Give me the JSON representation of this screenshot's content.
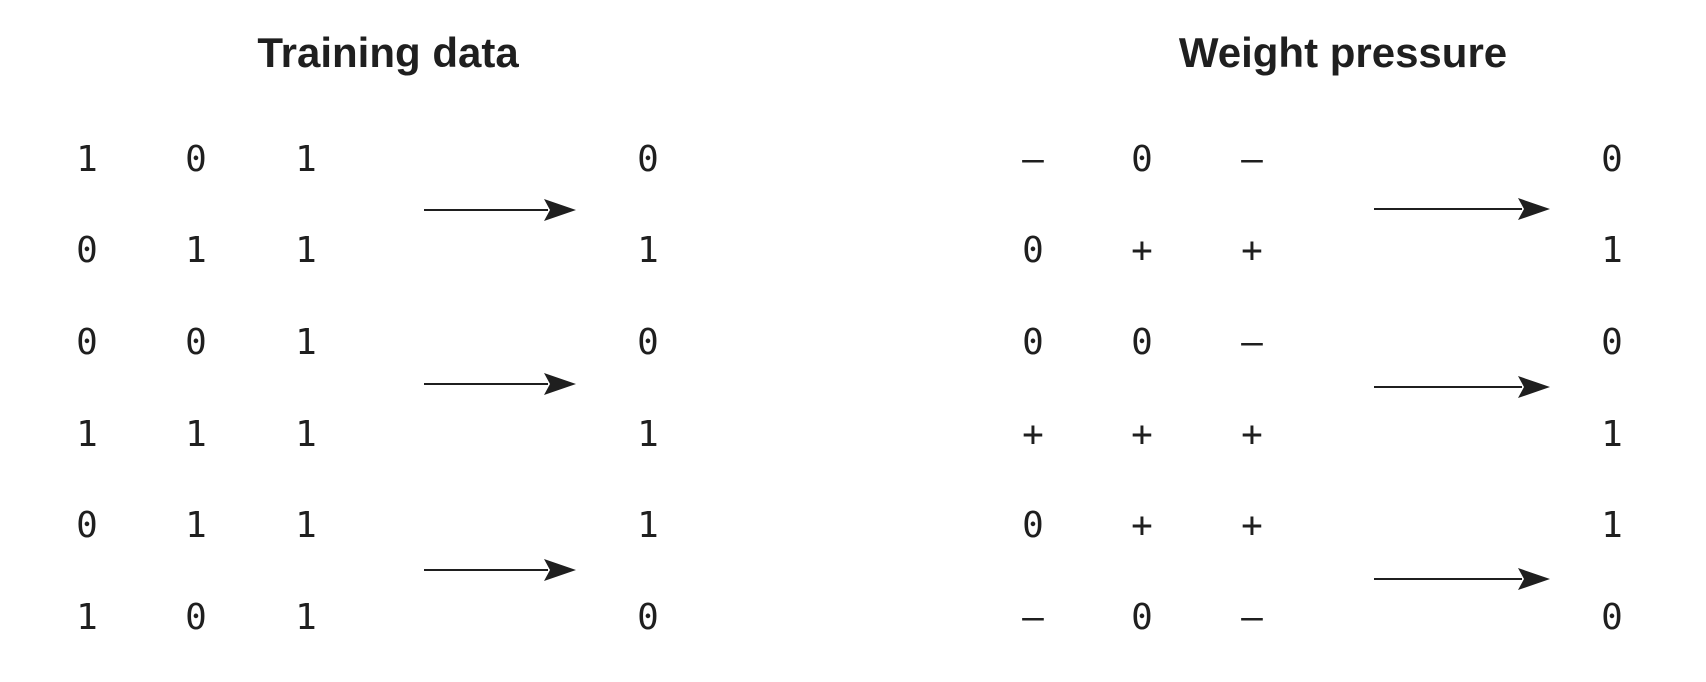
{
  "panels": [
    {
      "title": "Training data",
      "rows": [
        {
          "inputs": [
            "1",
            "0",
            "1"
          ],
          "target": "0"
        },
        {
          "inputs": [
            "0",
            "1",
            "1"
          ],
          "target": "1"
        },
        {
          "inputs": [
            "0",
            "0",
            "1"
          ],
          "target": "0"
        },
        {
          "inputs": [
            "1",
            "1",
            "1"
          ],
          "target": "1"
        },
        {
          "inputs": [
            "0",
            "1",
            "1"
          ],
          "target": "1"
        },
        {
          "inputs": [
            "1",
            "0",
            "1"
          ],
          "target": "0"
        }
      ],
      "arrow_count": 3
    },
    {
      "title": "Weight pressure",
      "rows": [
        {
          "inputs": [
            "–",
            "0",
            "–"
          ],
          "target": "0"
        },
        {
          "inputs": [
            "0",
            "+",
            "+"
          ],
          "target": "1"
        },
        {
          "inputs": [
            "0",
            "0",
            "–"
          ],
          "target": "0"
        },
        {
          "inputs": [
            "+",
            "+",
            "+"
          ],
          "target": "1"
        },
        {
          "inputs": [
            "0",
            "+",
            "+"
          ],
          "target": "1"
        },
        {
          "inputs": [
            "–",
            "0",
            "–"
          ],
          "target": "0"
        }
      ],
      "arrow_count": 3
    }
  ],
  "colors": {
    "text": "#1f1f1f",
    "arrow": "#1f1f1f",
    "background": "#ffffff"
  }
}
